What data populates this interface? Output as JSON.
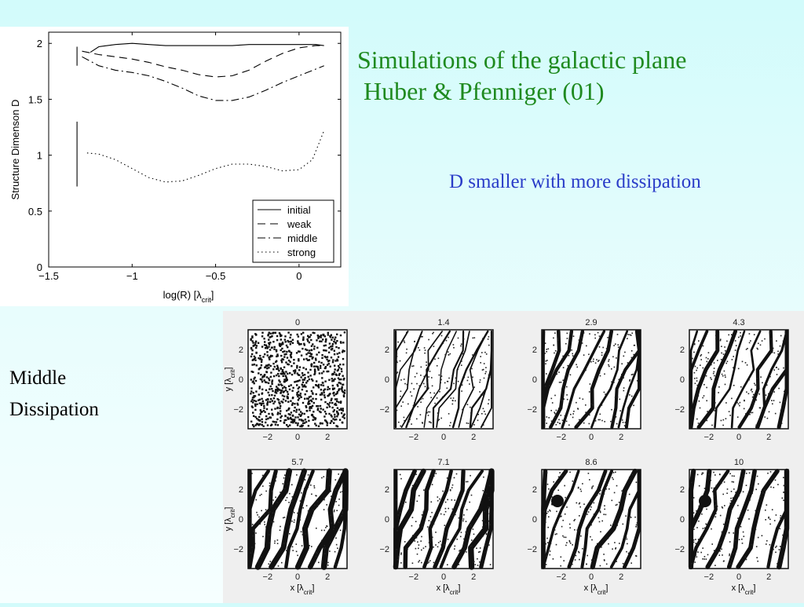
{
  "slide": {
    "title_line1": "Simulations of the galactic plane",
    "title_line2": " Huber & Pfenniger (01)",
    "note": "D smaller with more dissipation",
    "caption_line1": "Middle",
    "caption_line2": "Dissipation"
  },
  "colors": {
    "title": "#1f8a1f",
    "note": "#2a3cc8",
    "caption": "#000000"
  },
  "chart_data": [
    {
      "type": "line",
      "title": "",
      "xlabel": "log(R) [λcrit]",
      "ylabel": "Structure Dimenson D",
      "xlim": [
        -1.5,
        0.25
      ],
      "ylim": [
        0,
        2.1
      ],
      "xticks": [
        -1.5,
        -1,
        -0.5,
        0
      ],
      "xtick_labels": [
        "−1.5",
        "−1",
        "−0.5",
        "0"
      ],
      "yticks": [
        0,
        0.5,
        1,
        1.5,
        2
      ],
      "ytick_labels": [
        "0",
        "0.5",
        "1",
        "1.5",
        "2"
      ],
      "legend_position": "bottom-right",
      "grid": false,
      "series": [
        {
          "name": "initial",
          "style": "solid",
          "x": [
            -1.25,
            -1.2,
            -1.1,
            -1.0,
            -0.9,
            -0.8,
            -0.7,
            -0.6,
            -0.5,
            -0.4,
            -0.3,
            -0.2,
            -0.1,
            0.0,
            0.1,
            0.15
          ],
          "y": [
            1.92,
            1.97,
            1.99,
            2.0,
            1.99,
            1.98,
            1.98,
            1.98,
            1.98,
            1.98,
            1.99,
            1.99,
            1.99,
            1.99,
            1.99,
            1.98
          ]
        },
        {
          "name": "weak",
          "style": "dashed",
          "x": [
            -1.3,
            -1.2,
            -1.1,
            -1.0,
            -0.9,
            -0.8,
            -0.7,
            -0.6,
            -0.5,
            -0.4,
            -0.3,
            -0.2,
            -0.1,
            0.0,
            0.1,
            0.15
          ],
          "y": [
            1.93,
            1.9,
            1.88,
            1.86,
            1.83,
            1.79,
            1.76,
            1.72,
            1.7,
            1.71,
            1.76,
            1.84,
            1.91,
            1.96,
            1.98,
            1.98
          ]
        },
        {
          "name": "middle",
          "style": "dashdot",
          "x": [
            -1.3,
            -1.2,
            -1.1,
            -1.0,
            -0.9,
            -0.8,
            -0.7,
            -0.6,
            -0.5,
            -0.4,
            -0.3,
            -0.2,
            -0.1,
            0.0,
            0.1,
            0.15
          ],
          "y": [
            1.88,
            1.8,
            1.76,
            1.74,
            1.71,
            1.66,
            1.6,
            1.53,
            1.49,
            1.49,
            1.52,
            1.58,
            1.65,
            1.71,
            1.77,
            1.8
          ]
        },
        {
          "name": "strong",
          "style": "dotted",
          "x": [
            -1.27,
            -1.2,
            -1.1,
            -1.0,
            -0.9,
            -0.8,
            -0.7,
            -0.6,
            -0.5,
            -0.4,
            -0.3,
            -0.2,
            -0.1,
            0.0,
            0.08,
            0.15
          ],
          "y": [
            1.02,
            1.01,
            0.96,
            0.88,
            0.8,
            0.76,
            0.77,
            0.82,
            0.88,
            0.92,
            0.92,
            0.9,
            0.86,
            0.87,
            0.96,
            1.22
          ]
        },
        {
          "name": "",
          "style": "solid",
          "x": [
            -1.33,
            -1.33
          ],
          "y": [
            1.97,
            1.8
          ]
        },
        {
          "name": "",
          "style": "solid",
          "x": [
            -1.33,
            -1.33
          ],
          "y": [
            1.3,
            0.72
          ]
        }
      ]
    },
    {
      "type": "heatmap",
      "xlabel": "x [λcrit]",
      "ylabel": "y [λcrit]",
      "xticks": [
        -2,
        0,
        2
      ],
      "yticks": [
        2,
        0,
        -2
      ],
      "tick_labels": [
        "−2",
        "0",
        "2"
      ],
      "panels": [
        {
          "label": "0",
          "structure": "uniform"
        },
        {
          "label": "1.4",
          "structure": "fine-filaments"
        },
        {
          "label": "2.9",
          "structure": "filaments"
        },
        {
          "label": "4.3",
          "structure": "filaments"
        },
        {
          "label": "5.7",
          "structure": "thick-filaments"
        },
        {
          "label": "7.1",
          "structure": "thick-filaments"
        },
        {
          "label": "8.6",
          "structure": "clumpy"
        },
        {
          "label": "10",
          "structure": "clumpy"
        }
      ]
    }
  ]
}
